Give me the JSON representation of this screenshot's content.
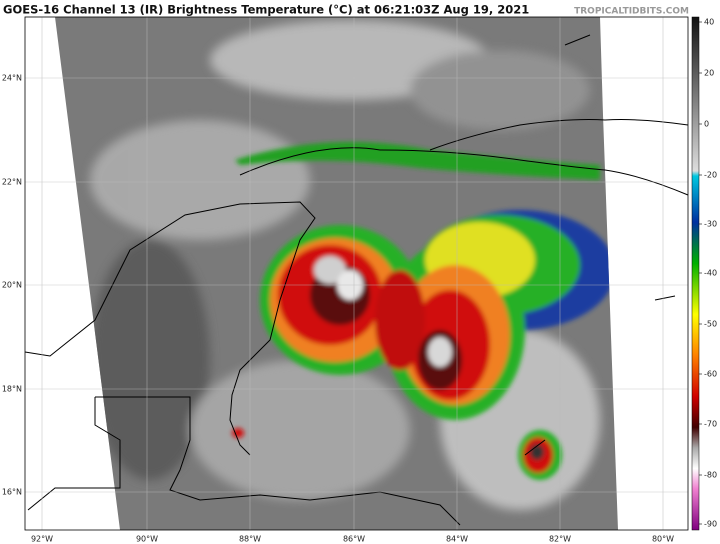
{
  "header": {
    "title": "GOES-16 Channel 13 (IR) Brightness Temperature (°C) at 06:21:03Z Aug 19, 2021",
    "credit": "TROPICALTIDBITS.COM"
  },
  "map": {
    "lat_labels": [
      "24°N",
      "22°N",
      "20°N",
      "18°N",
      "16°N"
    ],
    "lon_labels": [
      "92°W",
      "90°W",
      "88°W",
      "86°W",
      "84°W",
      "82°W",
      "80°W"
    ]
  },
  "colorbar": {
    "ticks": [
      40,
      20,
      0,
      -20,
      -30,
      -40,
      -50,
      -60,
      -70,
      -80,
      -90
    ]
  }
}
